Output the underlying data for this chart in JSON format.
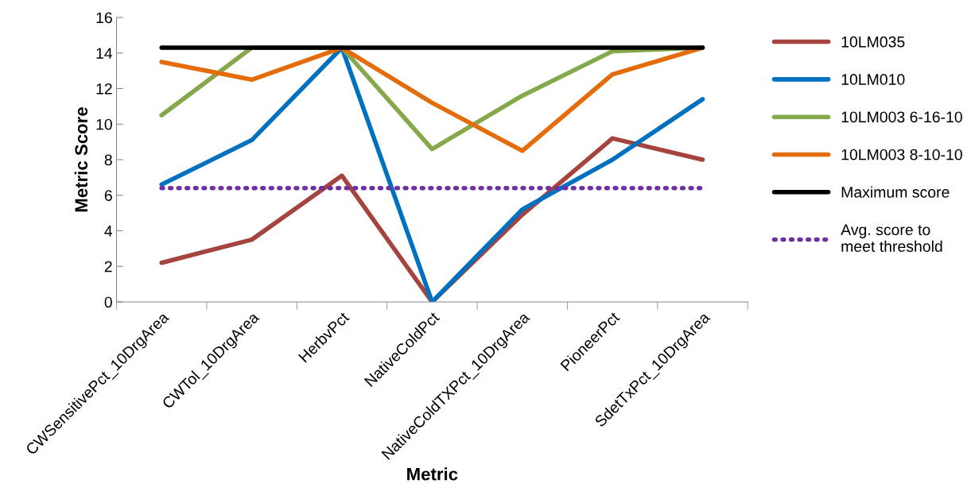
{
  "chart_data": {
    "type": "line",
    "xlabel": "Metric",
    "ylabel": "Metric Score",
    "categories": [
      "CWSensitivePct_10DrgArea",
      "CWTol_10DrgArea",
      "HerbvPct",
      "NativeColdPct",
      "NativeColdTXPct_10DrgArea",
      "PioneerPct",
      "SdetTxPct_10DrgArea"
    ],
    "series": [
      {
        "name": "10LM035",
        "color": "#a5443f",
        "values": [
          2.2,
          3.5,
          7.1,
          0,
          4.9,
          9.2,
          8.0
        ]
      },
      {
        "name": "10LM010",
        "color": "#0070c0",
        "values": [
          6.6,
          9.1,
          14.3,
          0,
          5.2,
          8.0,
          11.4
        ]
      },
      {
        "name": "10LM003 6-16-10",
        "color": "#86a84a",
        "values": [
          10.5,
          14.3,
          14.3,
          8.6,
          11.6,
          14.1,
          14.3
        ]
      },
      {
        "name": "10LM003 8-10-10",
        "color": "#e46c0a",
        "values": [
          13.5,
          12.5,
          14.3,
          11.2,
          8.5,
          12.8,
          14.3
        ]
      },
      {
        "name": "Maximum score",
        "color": "#000000",
        "values": [
          14.3,
          14.3,
          14.3,
          14.3,
          14.3,
          14.3,
          14.3
        ]
      },
      {
        "name": "Avg. score to meet threshold",
        "color": "#7030a0",
        "line_style": "dotted",
        "values": [
          6.4,
          6.4,
          6.4,
          6.4,
          6.4,
          6.4,
          6.4
        ]
      }
    ],
    "ylim": [
      0,
      16
    ],
    "yticks": [
      0,
      2,
      4,
      6,
      8,
      10,
      12,
      14,
      16
    ],
    "grid": false,
    "legend": "right",
    "marker": "none"
  }
}
